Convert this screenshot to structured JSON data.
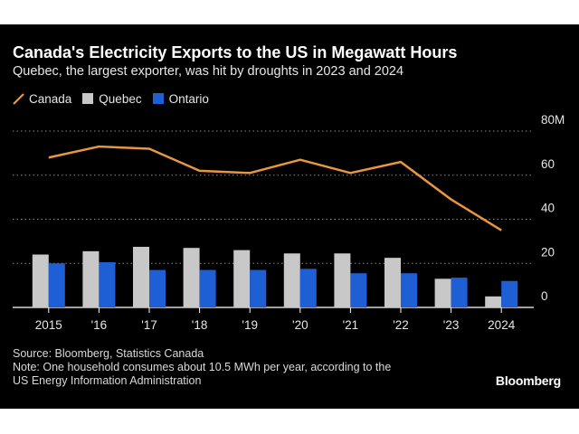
{
  "chart_data": {
    "type": "bar",
    "title": "Canada's Electricity Exports to the US in Megawatt Hours",
    "subtitle": "Quebec, the largest exporter, was hit by droughts in 2023 and 2024",
    "categories": [
      "2015",
      "'16",
      "'17",
      "'18",
      "'19",
      "'20",
      "'21",
      "'22",
      "'23",
      "2024"
    ],
    "y_ticks": [
      "80M",
      "60",
      "40",
      "20",
      "0"
    ],
    "ylim": [
      0,
      80
    ],
    "y_unit": "M",
    "grid": true,
    "legend_position": "top-left",
    "series": [
      {
        "name": "Canada",
        "kind": "line",
        "color": "#e8973f",
        "values": [
          68,
          73,
          72,
          62,
          61,
          67,
          61,
          66,
          49,
          35
        ]
      },
      {
        "name": "Quebec",
        "kind": "bar",
        "color": "#c8c8c8",
        "values": [
          24,
          25.5,
          27.5,
          27,
          26,
          24.5,
          24.5,
          22.5,
          13,
          5
        ]
      },
      {
        "name": "Ontario",
        "kind": "bar",
        "color": "#1f5fd6",
        "values": [
          20,
          20.5,
          17,
          17,
          17,
          17.5,
          15.5,
          15.5,
          13.5,
          12
        ]
      }
    ]
  },
  "footer": {
    "source": "Source: Bloomberg, Statistics Canada",
    "note_line1": "Note: One household consumes about 10.5 MWh per year, according to the",
    "note_line2": "US Energy Information Administration"
  },
  "brand": "Bloomberg"
}
